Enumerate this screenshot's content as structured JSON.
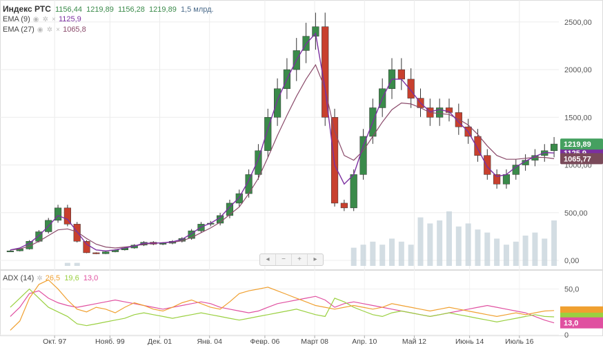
{
  "title": "Индекс РТС",
  "ohlc": {
    "open": "1156,44",
    "high": "1219,89",
    "low": "1156,28",
    "close": "1219,89",
    "volume": "1,5 млрд."
  },
  "ema9": {
    "label": "EMA (9)",
    "value": "1125,9"
  },
  "ema27": {
    "label": "EMA (27)",
    "value": "1065,8"
  },
  "adx": {
    "label": "ADX (14)",
    "adx_value": "26,5",
    "plus_di": "19,6",
    "minus_di": "13,0"
  },
  "price_tags": {
    "close": "1219,89",
    "ema27": "1065,77",
    "hidden": "1125,9"
  },
  "adx_tag": "13,0",
  "nav_buttons": [
    "◂",
    "−",
    "+",
    "▸"
  ],
  "colors": {
    "up": "#3a8a4a",
    "down": "#c8402e",
    "ema9": "#7b2fa0",
    "ema27": "#8a4a6a",
    "adx": "#f0a030",
    "plus_di": "#9ad040",
    "minus_di": "#e050a0",
    "tag_close": "#45a060",
    "tag_ema27": "#7a4a5a",
    "volume": "#c8d4dc"
  },
  "icons": [
    "eye-icon",
    "gear-icon",
    "close-icon"
  ],
  "chart_data": [
    {
      "type": "candlestick",
      "title": "Индекс РТС",
      "x_ticks": [
        "Окт. 97",
        "Нояб. 99",
        "Дек. 01",
        "Янв. 04",
        "Февр. 06",
        "Март 08",
        "Апр. 10",
        "Май 12",
        "Июнь 14",
        "Июль 16"
      ],
      "y_ticks": [
        "0,00",
        "500,00",
        "1000,00",
        "1500,00",
        "2000,00",
        "2500,00"
      ],
      "ylim": [
        0,
        2600
      ],
      "grid": true,
      "series": [
        {
          "name": "Индекс РТС",
          "close_values": [
            100,
            120,
            200,
            300,
            420,
            550,
            380,
            200,
            80,
            70,
            90,
            110,
            130,
            160,
            190,
            170,
            180,
            200,
            230,
            310,
            380,
            390,
            470,
            600,
            700,
            900,
            1150,
            1500,
            1800,
            2000,
            2200,
            2350,
            2450,
            1500,
            600,
            550,
            900,
            1300,
            1600,
            1800,
            2000,
            1900,
            1700,
            1600,
            1500,
            1600,
            1550,
            1400,
            1300,
            1100,
            900,
            800,
            900,
            1000,
            1050,
            1100,
            1150,
            1220
          ]
        },
        {
          "name": "EMA (9)",
          "values": [
            110,
            130,
            180,
            260,
            360,
            470,
            430,
            300,
            170,
            110,
            100,
            110,
            130,
            150,
            180,
            180,
            185,
            195,
            220,
            280,
            350,
            390,
            450,
            560,
            660,
            840,
            1060,
            1380,
            1680,
            1900,
            2100,
            2270,
            2380,
            1800,
            1000,
            800,
            900,
            1200,
            1450,
            1700,
            1900,
            1900,
            1780,
            1650,
            1560,
            1580,
            1560,
            1450,
            1350,
            1170,
            980,
            880,
            900,
            980,
            1040,
            1090,
            1130,
            1126
          ]
        },
        {
          "name": "EMA (27)",
          "values": [
            110,
            120,
            150,
            200,
            260,
            320,
            330,
            300,
            230,
            170,
            140,
            130,
            140,
            150,
            170,
            180,
            185,
            190,
            205,
            240,
            290,
            340,
            400,
            480,
            560,
            700,
            860,
            1080,
            1310,
            1520,
            1720,
            1900,
            2050,
            1800,
            1350,
            1100,
            1050,
            1150,
            1300,
            1450,
            1580,
            1650,
            1640,
            1600,
            1550,
            1540,
            1530,
            1480,
            1420,
            1320,
            1200,
            1100,
            1060,
            1060,
            1070,
            1080,
            1080,
            1066
          ]
        }
      ],
      "volume_ylim": [
        0,
        2.5
      ],
      "volume_values": [
        0,
        0,
        0,
        0,
        0,
        0,
        0.1,
        0.1,
        0,
        0,
        0,
        0,
        0,
        0,
        0,
        0,
        0,
        0,
        0,
        0,
        0,
        0,
        0,
        0,
        0,
        0,
        0,
        0,
        0,
        0,
        0,
        0,
        0,
        0,
        0,
        0,
        0.6,
        0.7,
        0.8,
        0.7,
        0.9,
        0.8,
        0.7,
        1.6,
        1.4,
        1.5,
        1.8,
        1.3,
        1.4,
        1.2,
        1.1,
        0.9,
        0.7,
        0.8,
        1.0,
        1.1,
        0.9,
        1.5
      ]
    },
    {
      "type": "line",
      "title": "ADX (14)",
      "y_ticks": [
        "0",
        "50,0"
      ],
      "ylim": [
        0,
        70
      ],
      "series": [
        {
          "name": "ADX",
          "values": [
            5,
            15,
            40,
            55,
            60,
            50,
            38,
            28,
            25,
            30,
            28,
            24,
            30,
            35,
            32,
            28,
            26,
            30,
            35,
            38,
            34,
            30,
            28,
            36,
            45,
            48,
            50,
            52,
            48,
            44,
            40,
            36,
            32,
            30,
            28,
            30,
            32,
            30,
            28,
            30,
            34,
            32,
            30,
            28,
            26,
            28,
            30,
            28,
            26,
            24,
            22,
            20,
            22,
            24,
            22,
            24,
            26,
            26.5
          ]
        },
        {
          "name": "+DI",
          "values": [
            30,
            40,
            50,
            40,
            30,
            25,
            20,
            12,
            10,
            12,
            14,
            16,
            18,
            22,
            24,
            22,
            20,
            18,
            20,
            22,
            24,
            22,
            20,
            18,
            16,
            18,
            20,
            22,
            24,
            26,
            28,
            25,
            22,
            20,
            40,
            36,
            30,
            26,
            22,
            20,
            24,
            26,
            24,
            22,
            20,
            22,
            24,
            22,
            20,
            18,
            16,
            14,
            16,
            18,
            20,
            22,
            20,
            19.6
          ]
        },
        {
          "name": "−DI",
          "values": [
            20,
            30,
            45,
            48,
            40,
            35,
            32,
            30,
            32,
            34,
            36,
            38,
            36,
            34,
            32,
            30,
            28,
            30,
            32,
            34,
            36,
            34,
            30,
            28,
            26,
            24,
            26,
            30,
            34,
            36,
            38,
            40,
            42,
            38,
            30,
            34,
            36,
            34,
            32,
            30,
            28,
            26,
            24,
            22,
            20,
            22,
            24,
            26,
            28,
            30,
            32,
            30,
            28,
            26,
            24,
            20,
            16,
            13
          ]
        }
      ]
    }
  ]
}
